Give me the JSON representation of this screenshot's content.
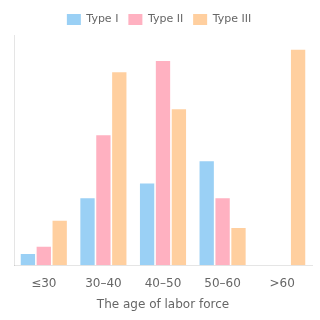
{
  "chart_data": {
    "type": "bar",
    "categories": [
      "≤30",
      "30–40",
      "40–50",
      "50–60",
      ">60"
    ],
    "series": [
      {
        "name": "Type I",
        "values": [
          3,
          18,
          22,
          28,
          0
        ]
      },
      {
        "name": "Type II",
        "values": [
          5,
          35,
          55,
          18,
          0
        ]
      },
      {
        "name": "Type III",
        "values": [
          12,
          52,
          42,
          10,
          58
        ]
      }
    ],
    "xlabel": "The age of labor force",
    "ylim": [
      0,
      62
    ],
    "grid": false,
    "legend": "top",
    "tick_labels": "x"
  }
}
